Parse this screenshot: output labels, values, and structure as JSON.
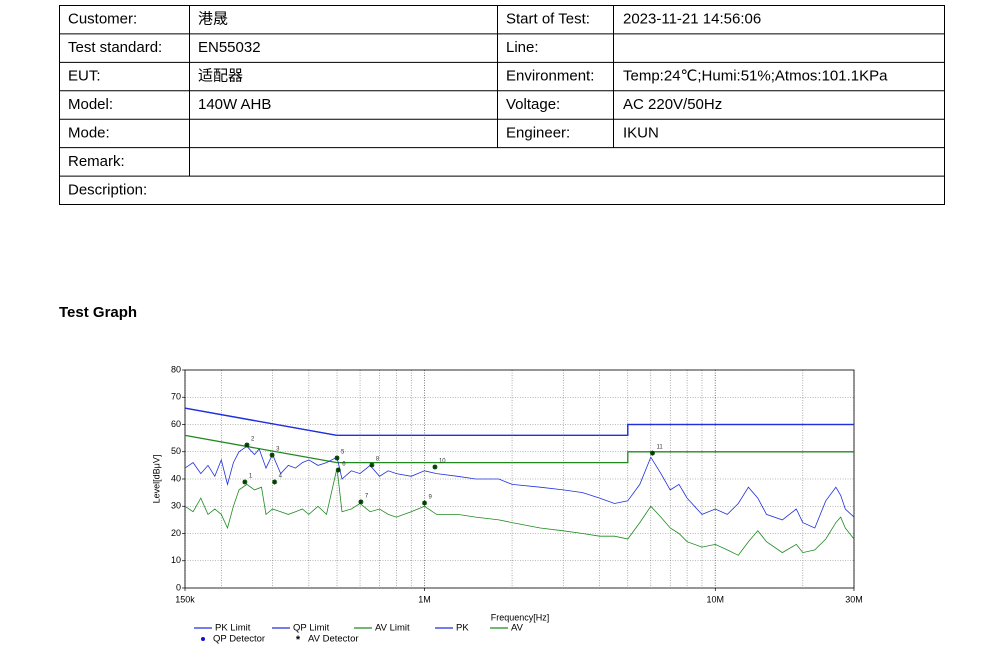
{
  "table": {
    "rows": [
      {
        "label": "Customer:",
        "value": "港晟",
        "label2": "Start of Test:",
        "value2": "2023-11-21 14:56:06"
      },
      {
        "label": "Test standard:",
        "value": "EN55032",
        "label2": "Line:"
      },
      {
        "label": "EUT:",
        "value": "适配器",
        "label2": "Environment:",
        "value2": "Temp:24℃;Humi:51%;Atmos:101.1KPa"
      },
      {
        "label": "Model:",
        "value": "140W AHB",
        "label2": "Voltage:",
        "value2": "AC 220V/50Hz"
      },
      {
        "label": "Mode:",
        "label2": "Engineer:",
        "value2": "IKUN"
      },
      {
        "label": "Remark:"
      },
      {
        "label": "Description:"
      }
    ]
  },
  "section_title": "Test Graph",
  "chart_data": {
    "type": "line",
    "xlabel": "Frequency[Hz]",
    "ylabel": "Level[dBμV]",
    "log_x": true,
    "grid": true,
    "xlim": [
      150000,
      30000000
    ],
    "ylim": [
      0,
      80
    ],
    "xticks": [
      {
        "value": 150000,
        "label": "150k"
      },
      {
        "value": 1000000,
        "label": "1M"
      },
      {
        "value": 10000000,
        "label": "10M"
      },
      {
        "value": 30000000,
        "label": "30M"
      }
    ],
    "minor_xticks": [
      200000,
      300000,
      400000,
      500000,
      600000,
      700000,
      800000,
      900000,
      2000000,
      3000000,
      4000000,
      5000000,
      6000000,
      7000000,
      8000000,
      9000000,
      20000000
    ],
    "yticks": [
      0,
      10,
      20,
      30,
      40,
      50,
      60,
      70,
      80
    ],
    "series": [
      {
        "name": "PK Limit",
        "color": "#2030e0",
        "x": [
          150000,
          500000,
          5000000,
          5000000,
          30000000
        ],
        "values": [
          66,
          56,
          56,
          60,
          60
        ]
      },
      {
        "name": "QP Limit",
        "color": "#2030e0",
        "x": [
          150000,
          500000,
          5000000,
          5000000,
          30000000
        ],
        "values": [
          66,
          56,
          56,
          60,
          60
        ]
      },
      {
        "name": "AV Limit",
        "color": "#208a20",
        "x": [
          150000,
          500000,
          5000000,
          5000000,
          30000000
        ],
        "values": [
          56,
          46,
          46,
          50,
          50
        ]
      },
      {
        "name": "PK",
        "color": "#2030e0",
        "x": [
          150000,
          160000,
          170000,
          180000,
          190000,
          200000,
          210000,
          220000,
          230000,
          245000,
          260000,
          270000,
          285000,
          300000,
          320000,
          340000,
          360000,
          380000,
          400000,
          430000,
          460000,
          500000,
          520000,
          560000,
          600000,
          650000,
          700000,
          750000,
          800000,
          900000,
          1000000,
          1100000,
          1300000,
          1500000,
          1800000,
          2000000,
          2500000,
          3000000,
          3500000,
          4000000,
          4500000,
          5000000,
          5500000,
          6000000,
          6500000,
          7000000,
          7500000,
          8000000,
          9000000,
          10000000,
          11000000,
          12000000,
          13000000,
          14000000,
          15000000,
          17000000,
          19000000,
          20000000,
          22000000,
          24000000,
          26000000,
          27000000,
          28000000,
          30000000
        ],
        "values": [
          44,
          46,
          42,
          45,
          41,
          47,
          38,
          46,
          50,
          52,
          49,
          51,
          44,
          49,
          42,
          45,
          44,
          46,
          47,
          45,
          46,
          48,
          40,
          43,
          42,
          45,
          41,
          43,
          42,
          41,
          43,
          42,
          41,
          40,
          40,
          38,
          37,
          36,
          35,
          33,
          31,
          32,
          38,
          48,
          42,
          36,
          38,
          33,
          27,
          29,
          27,
          31,
          37,
          33,
          27,
          25,
          29,
          24,
          22,
          32,
          37,
          34,
          29,
          26
        ]
      },
      {
        "name": "AV",
        "color": "#208a20",
        "x": [
          150000,
          160000,
          170000,
          180000,
          190000,
          200000,
          210000,
          220000,
          230000,
          245000,
          260000,
          275000,
          285000,
          300000,
          320000,
          340000,
          360000,
          380000,
          400000,
          430000,
          460000,
          500000,
          520000,
          560000,
          600000,
          650000,
          700000,
          750000,
          800000,
          900000,
          1000000,
          1100000,
          1300000,
          1500000,
          1800000,
          2000000,
          2500000,
          3000000,
          3500000,
          4000000,
          4500000,
          5000000,
          5500000,
          6000000,
          6500000,
          7000000,
          7500000,
          8000000,
          9000000,
          10000000,
          11000000,
          12000000,
          13000000,
          14000000,
          15000000,
          17000000,
          19000000,
          20000000,
          22000000,
          24000000,
          26000000,
          27000000,
          28000000,
          30000000
        ],
        "values": [
          30,
          28,
          33,
          27,
          29,
          27,
          22,
          30,
          36,
          38,
          36,
          37,
          27,
          29,
          28,
          27,
          28,
          29,
          27,
          30,
          27,
          44,
          28,
          29,
          31,
          28,
          29,
          27,
          26,
          28,
          30,
          27,
          27,
          26,
          25,
          24,
          22,
          21,
          20,
          19,
          19,
          18,
          24,
          30,
          26,
          22,
          20,
          17,
          15,
          16,
          14,
          12,
          17,
          21,
          17,
          13,
          16,
          13,
          14,
          18,
          24,
          26,
          22,
          18
        ]
      }
    ],
    "detectors": [
      {
        "name": "QP Detector",
        "color": "#1010d0",
        "ids": [
          2,
          3,
          5,
          8,
          10,
          11
        ],
        "x": [
          245000,
          299000,
          500000,
          659000,
          1086000,
          6080000
        ],
        "values": [
          52.5,
          48.8,
          47.7,
          45.1,
          44.4,
          49.5
        ]
      },
      {
        "name": "AV Detector",
        "color": "#108a10",
        "ids": [
          1,
          4,
          6,
          7,
          9
        ],
        "x": [
          241000,
          305000,
          505000,
          604000,
          1000000
        ],
        "values": [
          38.9,
          38.9,
          43.3,
          31.6,
          31.2
        ]
      }
    ]
  }
}
